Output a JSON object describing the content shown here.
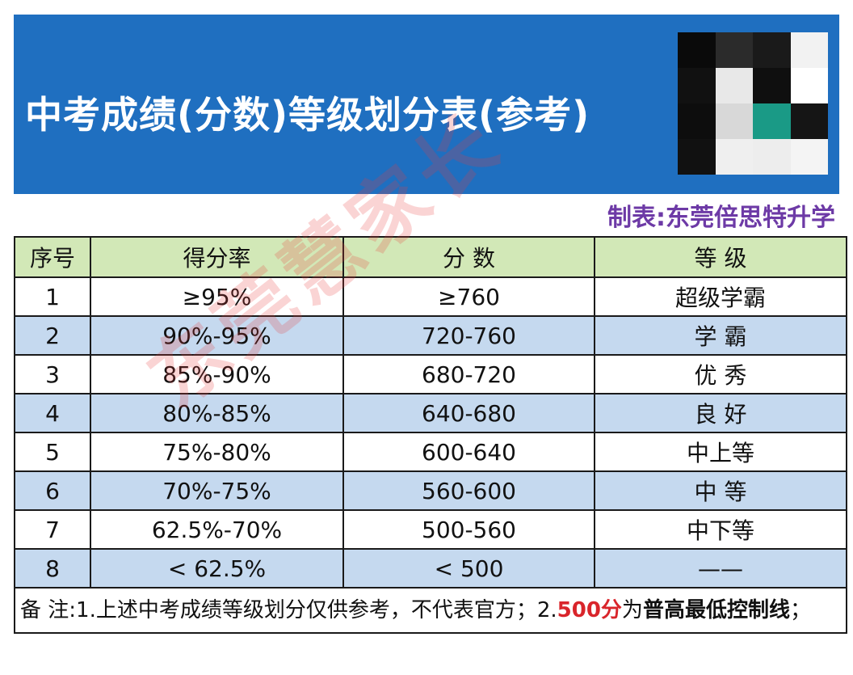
{
  "header": {
    "title": "中考成绩(分数)等级划分表(参考)",
    "maker": "制表:东莞倍思特升学",
    "bg_color": "#1f6fc0"
  },
  "qr_colors": [
    "#0a0a0a",
    "#2b2b2b",
    "#1a1a1a",
    "#f2f2f2",
    "#111111",
    "#e8e8e8",
    "#0f0f0f",
    "#ffffff",
    "#0d0d0d",
    "#d8d8d8",
    "#1a9a86",
    "#151515",
    "#111111",
    "#efefef",
    "#ededed",
    "#f4f4f4"
  ],
  "table": {
    "headers": [
      "序号",
      "得分率",
      "分 数",
      "等 级"
    ],
    "rows": [
      {
        "no": "1",
        "rate": "≥95%",
        "score": "≥760",
        "grade": "超级学霸"
      },
      {
        "no": "2",
        "rate": "90%-95%",
        "score": "720-760",
        "grade": "学 霸"
      },
      {
        "no": "3",
        "rate": "85%-90%",
        "score": "680-720",
        "grade": "优 秀"
      },
      {
        "no": "4",
        "rate": "80%-85%",
        "score": "640-680",
        "grade": "良 好"
      },
      {
        "no": "5",
        "rate": "75%-80%",
        "score": "600-640",
        "grade": "中上等"
      },
      {
        "no": "6",
        "rate": "70%-75%",
        "score": "560-600",
        "grade": "中 等"
      },
      {
        "no": "7",
        "rate": "62.5%-70%",
        "score": "500-560",
        "grade": "中下等"
      },
      {
        "no": "8",
        "rate": "< 62.5%",
        "score": "< 500",
        "grade": "——"
      }
    ]
  },
  "note": {
    "prefix": "备 注:1.上述中考成绩等级划分仅供参考，不代表官方；2.",
    "highlight": "500分",
    "mid": "为",
    "bold_tail": "普高最低控制线",
    "end": "；"
  },
  "watermark": "东莞慧家长",
  "colors": {
    "header_row": "#d2e8b7",
    "stripe_row": "#c5d9ef",
    "maker_text": "#6d3aa6",
    "highlight_text": "#d9252b"
  }
}
